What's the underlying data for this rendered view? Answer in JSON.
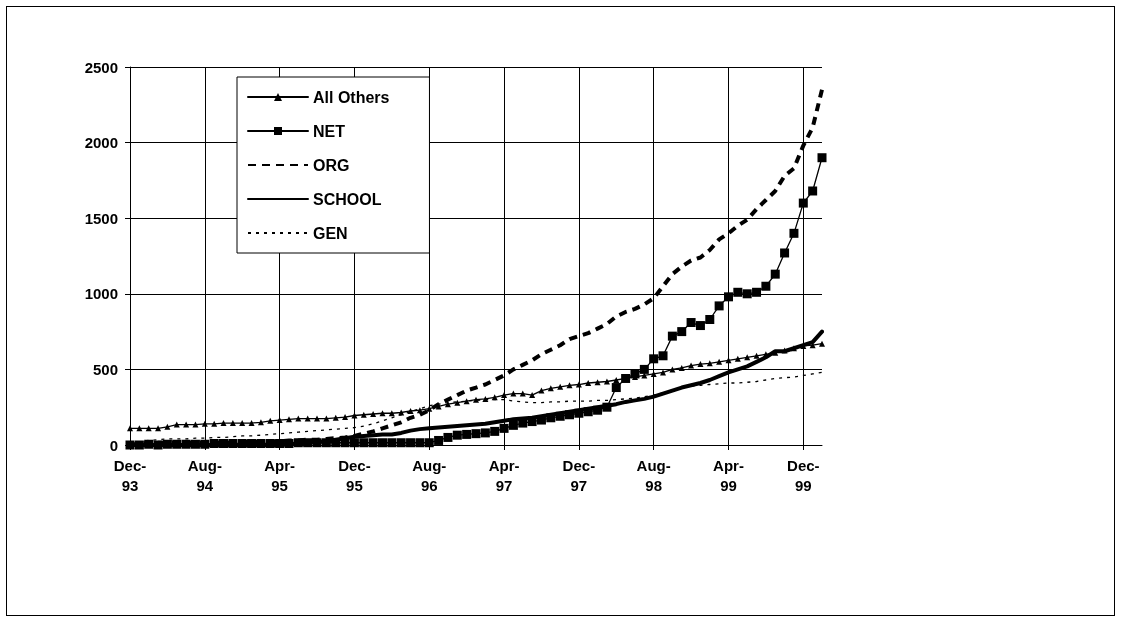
{
  "chart_data": {
    "type": "line",
    "categories": [
      "Dec-93",
      null,
      null,
      null,
      null,
      null,
      null,
      null,
      "Aug-94",
      null,
      null,
      null,
      null,
      null,
      null,
      null,
      "Apr-95",
      null,
      null,
      null,
      null,
      null,
      null,
      null,
      "Dec-95",
      null,
      null,
      null,
      null,
      null,
      null,
      null,
      "Aug-96",
      null,
      null,
      null,
      null,
      null,
      null,
      null,
      "Apr-97",
      null,
      null,
      null,
      null,
      null,
      null,
      null,
      "Dec-97",
      null,
      null,
      null,
      null,
      null,
      null,
      null,
      "Aug-98",
      null,
      null,
      null,
      null,
      null,
      null,
      null,
      "Apr-99",
      null,
      null,
      null,
      null,
      null,
      null,
      null,
      "Dec-99",
      null,
      null
    ],
    "ylim": [
      0,
      2500
    ],
    "yticks": [
      0,
      500,
      1000,
      1500,
      2000,
      2500
    ],
    "grid": true,
    "legend": "top left",
    "series": [
      {
        "name": "All Others",
        "color": "#000000",
        "marker": "triangle",
        "line_style": "solid",
        "values": [
          110,
          110,
          110,
          110,
          120,
          135,
          135,
          135,
          140,
          140,
          145,
          145,
          145,
          145,
          150,
          160,
          165,
          170,
          175,
          175,
          175,
          175,
          180,
          185,
          195,
          200,
          205,
          210,
          210,
          215,
          225,
          230,
          240,
          255,
          270,
          280,
          290,
          300,
          305,
          315,
          330,
          340,
          340,
          330,
          360,
          375,
          385,
          395,
          400,
          410,
          415,
          420,
          430,
          440,
          450,
          460,
          470,
          480,
          500,
          510,
          525,
          535,
          540,
          550,
          560,
          570,
          580,
          590,
          600,
          610,
          625,
          640,
          655,
          660,
          670
        ]
      },
      {
        "name": "NET",
        "color": "#000000",
        "marker": "square",
        "line_style": "solid",
        "values": [
          0,
          0,
          5,
          0,
          5,
          5,
          5,
          5,
          5,
          10,
          10,
          10,
          10,
          10,
          10,
          10,
          10,
          10,
          15,
          15,
          15,
          15,
          15,
          15,
          15,
          15,
          15,
          15,
          15,
          15,
          15,
          15,
          15,
          30,
          50,
          65,
          70,
          75,
          80,
          90,
          110,
          130,
          145,
          155,
          165,
          180,
          190,
          200,
          210,
          220,
          230,
          250,
          380,
          440,
          470,
          500,
          570,
          590,
          720,
          750,
          810,
          790,
          830,
          920,
          980,
          1010,
          1000,
          1010,
          1050,
          1130,
          1270,
          1400,
          1600,
          1680,
          1900
        ]
      },
      {
        "name": "ORG",
        "color": "#000000",
        "marker": "none",
        "line_style": "dashed",
        "values": [
          0,
          10,
          15,
          15,
          15,
          15,
          15,
          15,
          15,
          15,
          15,
          15,
          20,
          20,
          20,
          20,
          25,
          30,
          30,
          35,
          35,
          40,
          45,
          50,
          60,
          75,
          90,
          110,
          130,
          150,
          180,
          200,
          230,
          270,
          300,
          330,
          360,
          380,
          400,
          430,
          460,
          500,
          530,
          560,
          600,
          630,
          660,
          700,
          720,
          740,
          770,
          800,
          850,
          880,
          900,
          930,
          970,
          1050,
          1130,
          1180,
          1220,
          1240,
          1290,
          1360,
          1400,
          1450,
          1490,
          1560,
          1620,
          1680,
          1780,
          1830,
          1980,
          2100,
          2350
        ]
      },
      {
        "name": "SCHOOL",
        "color": "#000000",
        "marker": "none",
        "line_style": "solid",
        "values": [
          0,
          0,
          0,
          0,
          0,
          0,
          0,
          0,
          0,
          0,
          0,
          0,
          0,
          0,
          0,
          0,
          0,
          5,
          10,
          15,
          20,
          25,
          35,
          45,
          55,
          60,
          65,
          70,
          70,
          80,
          95,
          105,
          110,
          115,
          120,
          125,
          130,
          135,
          140,
          150,
          160,
          170,
          175,
          180,
          190,
          200,
          210,
          220,
          230,
          240,
          250,
          260,
          270,
          285,
          295,
          305,
          320,
          340,
          360,
          380,
          395,
          410,
          430,
          455,
          480,
          500,
          520,
          550,
          580,
          620,
          620,
          640,
          660,
          680,
          750
        ]
      },
      {
        "name": "GEN",
        "color": "#000000",
        "marker": "none",
        "line_style": "dotted",
        "values": [
          0,
          20,
          30,
          35,
          40,
          40,
          40,
          45,
          45,
          50,
          50,
          55,
          60,
          60,
          65,
          70,
          75,
          80,
          85,
          90,
          95,
          100,
          105,
          110,
          115,
          125,
          140,
          160,
          180,
          200,
          220,
          240,
          260,
          270,
          280,
          285,
          290,
          295,
          300,
          300,
          300,
          290,
          285,
          280,
          280,
          285,
          285,
          290,
          290,
          290,
          295,
          295,
          300,
          305,
          310,
          320,
          330,
          345,
          360,
          380,
          390,
          395,
          400,
          405,
          410,
          410,
          415,
          420,
          430,
          440,
          445,
          450,
          460,
          470,
          480
        ]
      }
    ]
  }
}
